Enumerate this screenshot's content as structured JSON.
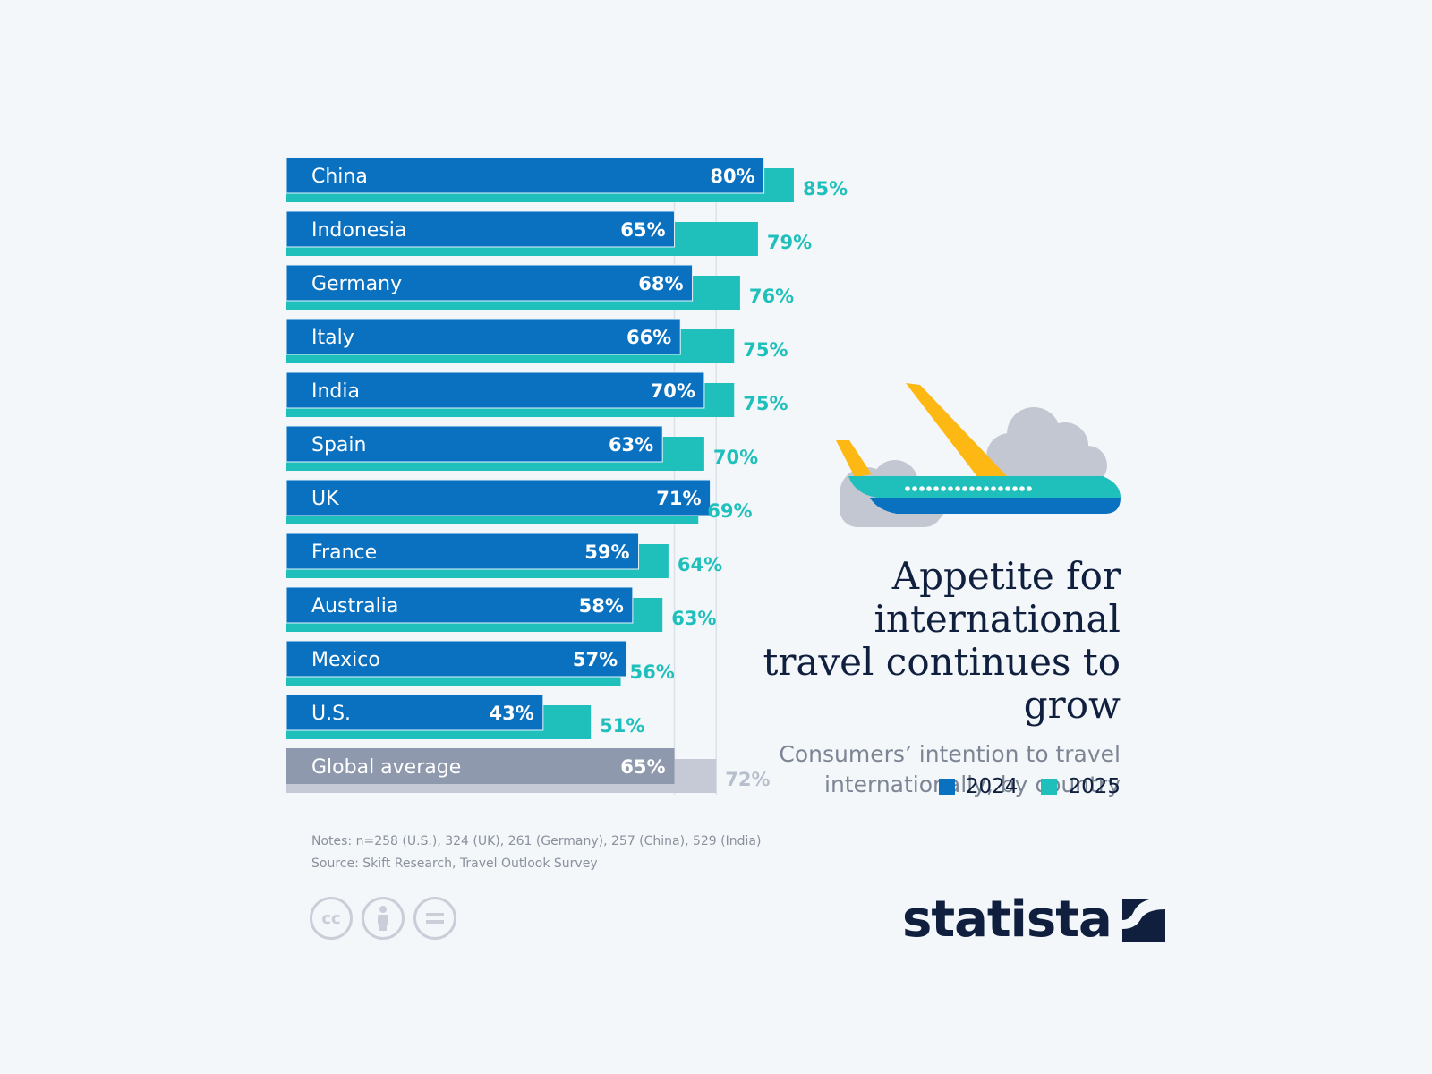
{
  "title": "Appetite for international travel continues to grow",
  "subtitle": "Consumers’ intention to travel internationally, by country",
  "legend": {
    "label_2024": "2024",
    "label_2025": "2025"
  },
  "notes": {
    "line1": "Notes: n=258 (U.S.), 324 (UK), 261 (Germany), 257 (China), 529 (India)",
    "line2": "Source: Skift Research, Travel Outlook Survey"
  },
  "brand": "statista",
  "colors": {
    "series_2024": "#0a71c0",
    "series_2025": "#1fc0bb",
    "global_2024": "#8f99ad",
    "global_2025": "#c5cad6",
    "title": "#0f1f3d"
  },
  "icons": [
    "creative-commons-icon",
    "attribution-icon",
    "no-derivatives-icon",
    "statista-logo-icon",
    "airplane-illustration"
  ],
  "chart_data": {
    "type": "bar",
    "orientation": "horizontal",
    "categories": [
      "China",
      "Indonesia",
      "Germany",
      "Italy",
      "India",
      "Spain",
      "UK",
      "France",
      "Australia",
      "Mexico",
      "U.S.",
      "Global average"
    ],
    "series": [
      {
        "name": "2024",
        "values": [
          80,
          65,
          68,
          66,
          70,
          63,
          71,
          59,
          58,
          57,
          43,
          65
        ],
        "labels": [
          "80%",
          "65%",
          "68%",
          "66%",
          "70%",
          "63%",
          "71%",
          "59%",
          "58%",
          "57%",
          "43%",
          "65%"
        ]
      },
      {
        "name": "2025",
        "values": [
          85,
          79,
          76,
          75,
          75,
          70,
          69,
          64,
          63,
          56,
          51,
          72
        ],
        "labels": [
          "85%",
          "79%",
          "76%",
          "75%",
          "75%",
          "70%",
          "69%",
          "64%",
          "63%",
          "56%",
          "51%",
          "72%"
        ]
      }
    ],
    "xlim": [
      0,
      100
    ],
    "grid": true,
    "legend_position": "bottom-right"
  }
}
